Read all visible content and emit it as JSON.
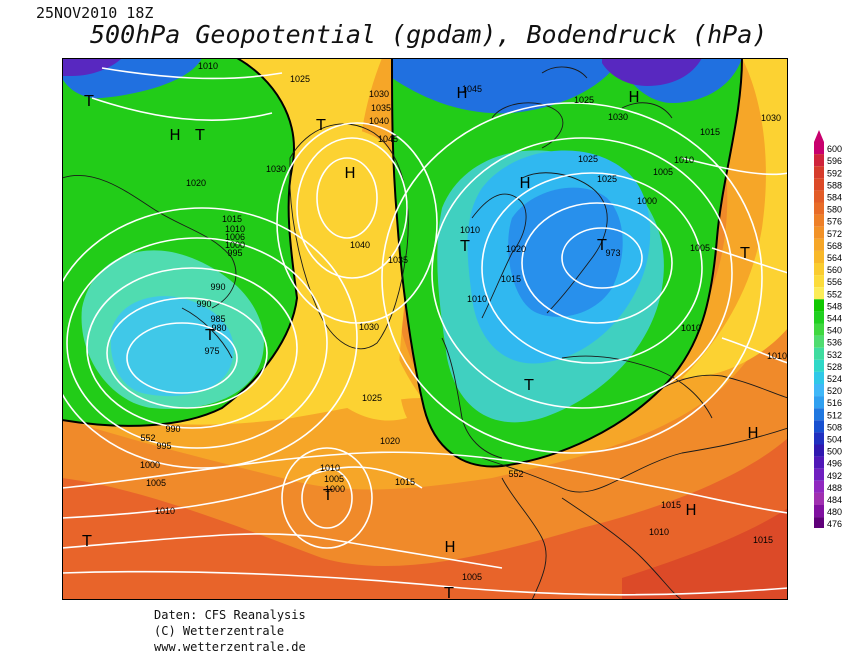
{
  "header": {
    "datetime": "25NOV2010 18Z",
    "title": "500hPa Geopotential (gpdam), Bodendruck (hPa)"
  },
  "legend": {
    "values": [
      "600",
      "596",
      "592",
      "588",
      "584",
      "580",
      "576",
      "572",
      "568",
      "564",
      "560",
      "556",
      "552",
      "548",
      "544",
      "540",
      "536",
      "532",
      "528",
      "524",
      "520",
      "516",
      "512",
      "508",
      "504",
      "500",
      "496",
      "492",
      "488",
      "484",
      "480",
      "476"
    ],
    "colors": [
      "#c8006e",
      "#d0243c",
      "#d63c2c",
      "#dc4a28",
      "#e25c28",
      "#e86c28",
      "#ee8028",
      "#f29228",
      "#f6a628",
      "#f8b82a",
      "#facc30",
      "#fcdc3c",
      "#fcec58",
      "#10c800",
      "#20d020",
      "#40d840",
      "#50dc70",
      "#40dca0",
      "#30d8c8",
      "#30c8e8",
      "#40b8f8",
      "#30a0f0",
      "#2078e0",
      "#1850d0",
      "#2030c0",
      "#3018b0",
      "#5018b8",
      "#7020c0",
      "#9028c0",
      "#a030b0",
      "#8010a0",
      "#60007a"
    ]
  },
  "map": {
    "pressure_labels": [
      "1010",
      "1025",
      "1030",
      "1035",
      "1040",
      "1045",
      "1030",
      "1045",
      "1025",
      "1030",
      "1015",
      "1030",
      "1020",
      "1025",
      "1025",
      "1010",
      "1005",
      "1000",
      "1015",
      "1010",
      "1006",
      "1000",
      "995",
      "990",
      "990",
      "985",
      "980",
      "975",
      "1040",
      "1035",
      "1010",
      "1020",
      "1015",
      "1010",
      "973",
      "1005",
      "1010",
      "1030",
      "1025",
      "1020",
      "1015",
      "1010",
      "1005",
      "1000",
      "1005",
      "995",
      "990",
      "1000",
      "1010",
      "1005",
      "1015",
      "1010",
      "1015",
      "1010",
      "552",
      "552"
    ],
    "markers": [
      {
        "type": "T"
      },
      {
        "type": "H"
      },
      {
        "type": "T"
      },
      {
        "type": "H"
      },
      {
        "type": "H"
      },
      {
        "type": "H"
      },
      {
        "type": "H"
      },
      {
        "type": "T"
      },
      {
        "type": "T"
      },
      {
        "type": "T"
      },
      {
        "type": "T"
      },
      {
        "type": "T"
      },
      {
        "type": "T"
      },
      {
        "type": "H"
      },
      {
        "type": "H"
      },
      {
        "type": "T"
      },
      {
        "type": "H"
      },
      {
        "type": "T"
      },
      {
        "type": "H"
      },
      {
        "type": "T"
      }
    ]
  },
  "footer": {
    "line1": "Daten: CFS Reanalysis",
    "line2": "(C) Wetterzentrale",
    "line3": "www.wetterzentrale.de"
  }
}
